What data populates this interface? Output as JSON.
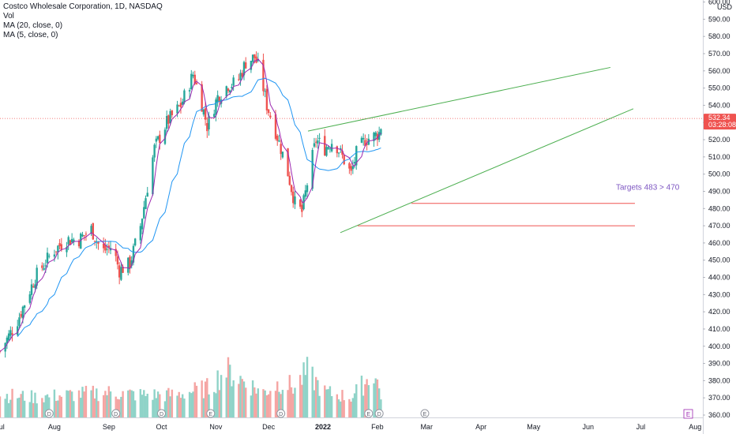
{
  "legend": {
    "title": "Costco Wholesale Corporation, 1D, NASDAQ",
    "vol": "Vol",
    "ma20": "MA (20, close, 0)",
    "ma5": "MA (5, close, 0)"
  },
  "chart_data": {
    "type": "candlestick",
    "ylabel": "USD",
    "ylim": [
      356,
      605
    ],
    "y_ticks": [
      360,
      370,
      380,
      390,
      400,
      410,
      420,
      430,
      440,
      450,
      460,
      470,
      480,
      490,
      500,
      510,
      520,
      530,
      540,
      550,
      560,
      570,
      580,
      590,
      600
    ],
    "x_ticks": [
      "Jul",
      "Aug",
      "Sep",
      "Oct",
      "Nov",
      "Dec",
      "2022",
      "Feb",
      "Mar",
      "Apr",
      "May",
      "Jun",
      "Jul",
      "Aug"
    ],
    "last_price": "532.34",
    "countdown": "03:28:08",
    "annotation": "Targets 483 > 470",
    "event_markers": [
      "D",
      "D",
      "D",
      "E",
      "D",
      "E",
      "D",
      "E"
    ],
    "range_flag": "E",
    "targets": [
      483,
      470
    ],
    "channel": {
      "upper": {
        "from": [
          "Dec 8",
          525
        ],
        "to": [
          "Jun 15",
          562
        ]
      },
      "lower": {
        "from": [
          "Jan 14",
          466
        ],
        "to": [
          "Jul 1",
          538
        ]
      }
    },
    "colors": {
      "up": "#26a69a",
      "down": "#ef5350",
      "vol_up": "#8fd3c8",
      "vol_down": "#f5a5a3",
      "ma20": "#2196f3",
      "ma5": "#9c27b0",
      "trendline": "#4caf50",
      "target": "#ef5350",
      "price_line": "#ef5350",
      "annotation": "#7e57c2"
    },
    "series_anchors": {
      "description": "approximate daily close path (date index 0 = Jul 1 2021) used to reconstruct candles",
      "points": [
        [
          0,
          397
        ],
        [
          10,
          415
        ],
        [
          20,
          440
        ],
        [
          30,
          455
        ],
        [
          38,
          462
        ],
        [
          45,
          462
        ],
        [
          52,
          468
        ],
        [
          58,
          455
        ],
        [
          64,
          458
        ],
        [
          68,
          444
        ],
        [
          74,
          448
        ],
        [
          80,
          470
        ],
        [
          88,
          515
        ],
        [
          95,
          530
        ],
        [
          103,
          540
        ],
        [
          110,
          558
        ],
        [
          114,
          545
        ],
        [
          118,
          528
        ],
        [
          124,
          545
        ],
        [
          130,
          552
        ],
        [
          135,
          553
        ],
        [
          140,
          565
        ],
        [
          145,
          568
        ],
        [
          148,
          560
        ],
        [
          152,
          540
        ],
        [
          157,
          525
        ],
        [
          163,
          505
        ],
        [
          168,
          483
        ],
        [
          172,
          478
        ],
        [
          176,
          500
        ],
        [
          180,
          520
        ],
        [
          185,
          515
        ],
        [
          190,
          520
        ],
        [
          195,
          510
        ],
        [
          200,
          500
        ],
        [
          203,
          512
        ],
        [
          208,
          520
        ],
        [
          213,
          522
        ],
        [
          216,
          524
        ],
        [
          218,
          532
        ]
      ]
    },
    "volume_profile": {
      "description": "relative daily volume (0-1) anchors",
      "points": [
        [
          0,
          0.45
        ],
        [
          20,
          0.4
        ],
        [
          40,
          0.45
        ],
        [
          60,
          0.5
        ],
        [
          80,
          0.45
        ],
        [
          100,
          0.45
        ],
        [
          120,
          0.6
        ],
        [
          128,
          0.95
        ],
        [
          140,
          0.7
        ],
        [
          150,
          0.5
        ],
        [
          160,
          0.7
        ],
        [
          168,
          0.6
        ],
        [
          175,
          0.9
        ],
        [
          185,
          0.5
        ],
        [
          200,
          0.4
        ],
        [
          208,
          0.7
        ],
        [
          213,
          0.9
        ],
        [
          218,
          0.35
        ]
      ]
    }
  }
}
